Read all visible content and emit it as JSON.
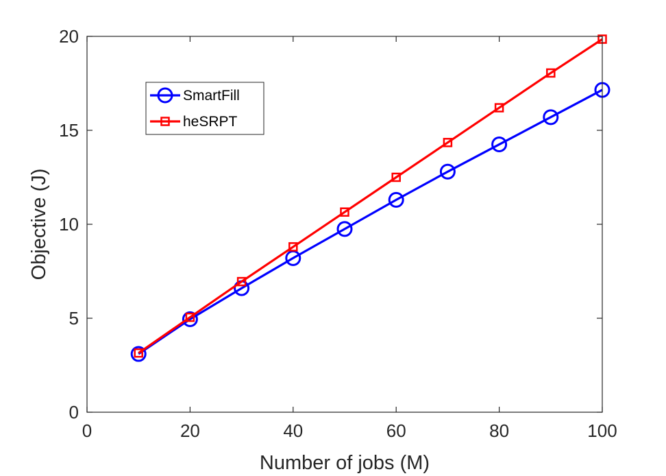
{
  "chart_data": {
    "type": "line",
    "title": "",
    "xlabel": "Number of jobs (M)",
    "ylabel": "Objective (J)",
    "xlim": [
      0,
      100
    ],
    "ylim": [
      0,
      20
    ],
    "xticks": [
      0,
      20,
      40,
      60,
      80,
      100
    ],
    "yticks": [
      0,
      5,
      10,
      15,
      20
    ],
    "grid": false,
    "legend_position": "top-left",
    "series": [
      {
        "name": "SmartFill",
        "color": "#0000ff",
        "marker": "circle",
        "x": [
          10,
          20,
          30,
          40,
          50,
          60,
          70,
          80,
          90,
          100
        ],
        "y": [
          3.1,
          4.95,
          6.6,
          8.2,
          9.75,
          11.3,
          12.8,
          14.25,
          15.7,
          17.15
        ]
      },
      {
        "name": "heSRPT",
        "color": "#ff0000",
        "marker": "square",
        "x": [
          10,
          20,
          30,
          40,
          50,
          60,
          70,
          80,
          90,
          100
        ],
        "y": [
          3.15,
          5.05,
          6.95,
          8.8,
          10.65,
          12.5,
          14.35,
          16.2,
          18.05,
          19.85
        ]
      }
    ]
  }
}
